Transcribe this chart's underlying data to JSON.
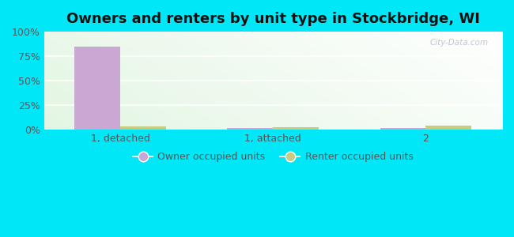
{
  "title": "Owners and renters by unit type in Stockbridge, WI",
  "categories": [
    "1, detached",
    "1, attached",
    "2"
  ],
  "owner_values": [
    85.0,
    1.5,
    1.5
  ],
  "renter_values": [
    3.5,
    3.0,
    4.0
  ],
  "owner_color": "#c9a8d4",
  "renter_color": "#c8cc82",
  "ylim": [
    0,
    100
  ],
  "yticks": [
    0,
    25,
    50,
    75,
    100
  ],
  "ytick_labels": [
    "0%",
    "25%",
    "50%",
    "75%",
    "100%"
  ],
  "bg_grad_topleft": "#c8f0e0",
  "bg_grad_topright": "#ffffff",
  "bg_grad_bottomleft": "#c8f0c8",
  "outer_bg": "#00e8f8",
  "bar_width": 0.3,
  "legend_owner": "Owner occupied units",
  "legend_renter": "Renter occupied units",
  "title_fontsize": 13,
  "tick_fontsize": 9,
  "legend_fontsize": 9,
  "watermark": "City-Data.com"
}
